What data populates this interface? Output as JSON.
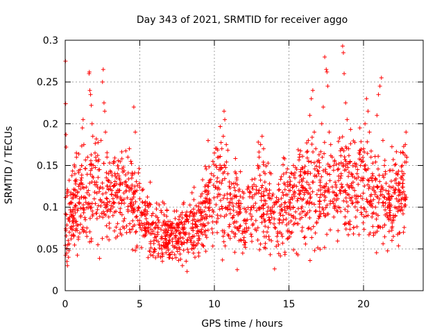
{
  "chart_data": {
    "type": "scatter",
    "title": "Day 343 of 2021, SRMTID for receiver aggo",
    "xlabel": "GPS time / hours",
    "ylabel": "SRMTID / TECUs",
    "xlim": [
      0,
      24
    ],
    "ylim": [
      0,
      0.3
    ],
    "xticks": [
      0,
      5,
      10,
      15,
      20
    ],
    "xtick_labels": [
      "0",
      "5",
      "10",
      "15",
      "20"
    ],
    "yticks": [
      0,
      0.05,
      0.1,
      0.15,
      0.2,
      0.25,
      0.3
    ],
    "ytick_labels": [
      "0",
      "0.05",
      "0.1",
      "0.15",
      "0.2",
      "0.25",
      "0.3"
    ],
    "grid": true,
    "marker": "plus",
    "color": "#ff0000",
    "series": [
      {
        "name": "SRMTID",
        "points": [
          [
            0.02,
            0.275
          ],
          [
            0.03,
            0.224
          ],
          [
            0.05,
            0.187
          ],
          [
            0.06,
            0.172
          ],
          [
            0.08,
            0.091
          ],
          [
            0.1,
            0.045
          ],
          [
            0.12,
            0.035
          ],
          [
            0.15,
            0.03
          ],
          [
            0.18,
            0.055
          ],
          [
            0.2,
            0.06
          ],
          [
            0.22,
            0.04
          ],
          [
            0.25,
            0.048
          ],
          [
            0.28,
            0.07
          ],
          [
            0.3,
            0.088
          ],
          [
            0.35,
            0.075
          ],
          [
            0.4,
            0.062
          ],
          [
            0.45,
            0.105
          ],
          [
            0.5,
            0.095
          ],
          [
            0.55,
            0.115
          ],
          [
            0.6,
            0.085
          ],
          [
            0.65,
            0.12
          ],
          [
            0.7,
            0.128
          ],
          [
            0.75,
            0.165
          ],
          [
            0.8,
            0.072
          ],
          [
            0.85,
            0.098
          ],
          [
            0.9,
            0.125
          ],
          [
            0.95,
            0.11
          ],
          [
            1.0,
            0.145
          ],
          [
            1.05,
            0.09
          ],
          [
            1.1,
            0.135
          ],
          [
            1.15,
            0.195
          ],
          [
            1.2,
            0.205
          ],
          [
            1.25,
            0.175
          ],
          [
            1.3,
            0.112
          ],
          [
            1.35,
            0.085
          ],
          [
            1.4,
            0.07
          ],
          [
            1.45,
            0.065
          ],
          [
            1.5,
            0.16
          ],
          [
            1.55,
            0.12
          ],
          [
            1.6,
            0.26
          ],
          [
            1.62,
            0.262
          ],
          [
            1.65,
            0.24
          ],
          [
            1.7,
            0.235
          ],
          [
            1.75,
            0.222
          ],
          [
            1.8,
            0.2
          ],
          [
            1.85,
            0.185
          ],
          [
            1.9,
            0.15
          ],
          [
            1.95,
            0.11
          ],
          [
            2.0,
            0.165
          ],
          [
            2.1,
            0.13
          ],
          [
            2.2,
            0.155
          ],
          [
            2.3,
            0.145
          ],
          [
            2.4,
            0.18
          ],
          [
            2.5,
            0.25
          ],
          [
            2.55,
            0.265
          ],
          [
            2.6,
            0.225
          ],
          [
            2.65,
            0.215
          ],
          [
            2.7,
            0.19
          ],
          [
            2.8,
            0.16
          ],
          [
            2.9,
            0.14
          ],
          [
            3.0,
            0.125
          ],
          [
            3.1,
            0.115
          ],
          [
            3.2,
            0.09
          ],
          [
            3.3,
            0.105
          ],
          [
            3.4,
            0.095
          ],
          [
            3.5,
            0.14
          ],
          [
            3.6,
            0.12
          ],
          [
            3.7,
            0.11
          ],
          [
            3.8,
            0.158
          ],
          [
            3.9,
            0.148
          ],
          [
            4.0,
            0.13
          ],
          [
            4.1,
            0.125
          ],
          [
            4.2,
            0.16
          ],
          [
            4.3,
            0.17
          ],
          [
            4.4,
            0.155
          ],
          [
            4.5,
            0.14
          ],
          [
            4.6,
            0.22
          ],
          [
            4.7,
            0.19
          ],
          [
            4.8,
            0.12
          ],
          [
            4.9,
            0.1
          ],
          [
            5.0,
            0.11
          ],
          [
            5.1,
            0.09
          ],
          [
            5.2,
            0.078
          ],
          [
            5.3,
            0.08
          ],
          [
            5.4,
            0.068
          ],
          [
            5.5,
            0.105
          ],
          [
            5.6,
            0.07
          ],
          [
            5.7,
            0.13
          ],
          [
            5.8,
            0.09
          ],
          [
            5.9,
            0.082
          ],
          [
            6.0,
            0.075
          ],
          [
            6.1,
            0.065
          ],
          [
            6.2,
            0.07
          ],
          [
            6.3,
            0.055
          ],
          [
            6.4,
            0.04
          ],
          [
            6.5,
            0.045
          ],
          [
            6.6,
            0.058
          ],
          [
            6.7,
            0.062
          ],
          [
            6.8,
            0.072
          ],
          [
            6.9,
            0.05
          ],
          [
            7.0,
            0.06
          ],
          [
            7.1,
            0.068
          ],
          [
            7.2,
            0.075
          ],
          [
            7.3,
            0.052
          ],
          [
            7.4,
            0.065
          ],
          [
            7.5,
            0.078
          ],
          [
            7.6,
            0.058
          ],
          [
            7.7,
            0.07
          ],
          [
            7.8,
            0.082
          ],
          [
            7.9,
            0.063
          ],
          [
            8.0,
            0.075
          ],
          [
            8.1,
            0.09
          ],
          [
            8.2,
            0.085
          ],
          [
            8.3,
            0.068
          ],
          [
            8.4,
            0.06
          ],
          [
            8.5,
            0.05
          ],
          [
            8.6,
            0.045
          ],
          [
            8.7,
            0.04
          ],
          [
            8.8,
            0.055
          ],
          [
            8.9,
            0.072
          ],
          [
            9.0,
            0.062
          ],
          [
            9.1,
            0.085
          ],
          [
            9.2,
            0.095
          ],
          [
            9.3,
            0.088
          ],
          [
            9.4,
            0.1
          ],
          [
            9.5,
            0.11
          ],
          [
            9.6,
            0.125
          ],
          [
            9.7,
            0.13
          ],
          [
            9.8,
            0.14
          ],
          [
            9.9,
            0.155
          ],
          [
            10.0,
            0.165
          ],
          [
            10.1,
            0.15
          ],
          [
            10.2,
            0.135
          ],
          [
            10.3,
            0.16
          ],
          [
            10.4,
            0.145
          ],
          [
            10.5,
            0.17
          ],
          [
            10.6,
            0.185
          ],
          [
            10.65,
            0.215
          ],
          [
            10.7,
            0.205
          ],
          [
            10.8,
            0.175
          ],
          [
            10.9,
            0.14
          ],
          [
            11.0,
            0.125
          ],
          [
            11.1,
            0.11
          ],
          [
            11.2,
            0.105
          ],
          [
            11.3,
            0.09
          ],
          [
            11.4,
            0.12
          ],
          [
            11.5,
            0.135
          ],
          [
            11.6,
            0.1
          ],
          [
            11.7,
            0.095
          ],
          [
            11.8,
            0.06
          ],
          [
            11.9,
            0.045
          ],
          [
            12.0,
            0.055
          ],
          [
            12.1,
            0.07
          ],
          [
            12.2,
            0.085
          ],
          [
            12.3,
            0.075
          ],
          [
            12.4,
            0.092
          ],
          [
            12.5,
            0.065
          ],
          [
            12.6,
            0.08
          ],
          [
            12.7,
            0.115
          ],
          [
            12.8,
            0.125
          ],
          [
            12.9,
            0.15
          ],
          [
            13.0,
            0.16
          ],
          [
            13.1,
            0.175
          ],
          [
            13.2,
            0.185
          ],
          [
            13.3,
            0.17
          ],
          [
            13.4,
            0.14
          ],
          [
            13.5,
            0.12
          ],
          [
            13.6,
            0.1
          ],
          [
            13.7,
            0.085
          ],
          [
            13.8,
            0.11
          ],
          [
            13.9,
            0.095
          ],
          [
            14.0,
            0.08
          ],
          [
            14.1,
            0.075
          ],
          [
            14.2,
            0.065
          ],
          [
            14.3,
            0.055
          ],
          [
            14.4,
            0.07
          ],
          [
            14.5,
            0.068
          ],
          [
            14.6,
            0.09
          ],
          [
            14.7,
            0.1
          ],
          [
            14.8,
            0.115
          ],
          [
            14.9,
            0.13
          ],
          [
            15.0,
            0.12
          ],
          [
            15.1,
            0.105
          ],
          [
            15.2,
            0.14
          ],
          [
            15.3,
            0.15
          ],
          [
            15.4,
            0.135
          ],
          [
            15.5,
            0.125
          ],
          [
            15.6,
            0.11
          ],
          [
            15.7,
            0.16
          ],
          [
            15.8,
            0.145
          ],
          [
            15.9,
            0.12
          ],
          [
            16.0,
            0.095
          ],
          [
            16.1,
            0.09
          ],
          [
            16.2,
            0.13
          ],
          [
            16.3,
            0.18
          ],
          [
            16.4,
            0.21
          ],
          [
            16.5,
            0.23
          ],
          [
            16.6,
            0.24
          ],
          [
            16.7,
            0.19
          ],
          [
            16.8,
            0.17
          ],
          [
            16.9,
            0.155
          ],
          [
            17.0,
            0.14
          ],
          [
            17.1,
            0.13
          ],
          [
            17.2,
            0.2
          ],
          [
            17.3,
            0.22
          ],
          [
            17.4,
            0.28
          ],
          [
            17.5,
            0.265
          ],
          [
            17.55,
            0.262
          ],
          [
            17.6,
            0.245
          ],
          [
            17.7,
            0.19
          ],
          [
            17.8,
            0.175
          ],
          [
            17.9,
            0.16
          ],
          [
            18.0,
            0.15
          ],
          [
            18.1,
            0.13
          ],
          [
            18.2,
            0.115
          ],
          [
            18.3,
            0.1
          ],
          [
            18.4,
            0.12
          ],
          [
            18.5,
            0.14
          ],
          [
            18.6,
            0.293
          ],
          [
            18.65,
            0.285
          ],
          [
            18.7,
            0.26
          ],
          [
            18.8,
            0.225
          ],
          [
            18.9,
            0.205
          ],
          [
            19.0,
            0.17
          ],
          [
            19.1,
            0.155
          ],
          [
            19.2,
            0.14
          ],
          [
            19.3,
            0.13
          ],
          [
            19.4,
            0.12
          ],
          [
            19.5,
            0.11
          ],
          [
            19.6,
            0.145
          ],
          [
            19.7,
            0.165
          ],
          [
            19.8,
            0.15
          ],
          [
            19.9,
            0.135
          ],
          [
            20.0,
            0.17
          ],
          [
            20.1,
            0.2
          ],
          [
            20.2,
            0.23
          ],
          [
            20.3,
            0.215
          ],
          [
            20.4,
            0.19
          ],
          [
            20.5,
            0.16
          ],
          [
            20.6,
            0.14
          ],
          [
            20.7,
            0.12
          ],
          [
            20.8,
            0.1
          ],
          [
            20.9,
            0.21
          ],
          [
            21.0,
            0.235
          ],
          [
            21.1,
            0.245
          ],
          [
            21.2,
            0.255
          ],
          [
            21.3,
            0.18
          ],
          [
            21.4,
            0.15
          ],
          [
            21.5,
            0.12
          ],
          [
            21.6,
            0.1
          ],
          [
            21.7,
            0.085
          ],
          [
            21.8,
            0.09
          ],
          [
            21.9,
            0.075
          ],
          [
            22.0,
            0.065
          ],
          [
            22.1,
            0.1
          ],
          [
            22.2,
            0.11
          ],
          [
            22.3,
            0.095
          ],
          [
            22.4,
            0.12
          ],
          [
            22.5,
            0.135
          ],
          [
            22.6,
            0.15
          ],
          [
            22.7,
            0.14
          ],
          [
            22.8,
            0.175
          ],
          [
            22.85,
            0.19
          ],
          [
            22.9,
            0.16
          ]
        ]
      }
    ],
    "band": {
      "seed": 343
    }
  }
}
